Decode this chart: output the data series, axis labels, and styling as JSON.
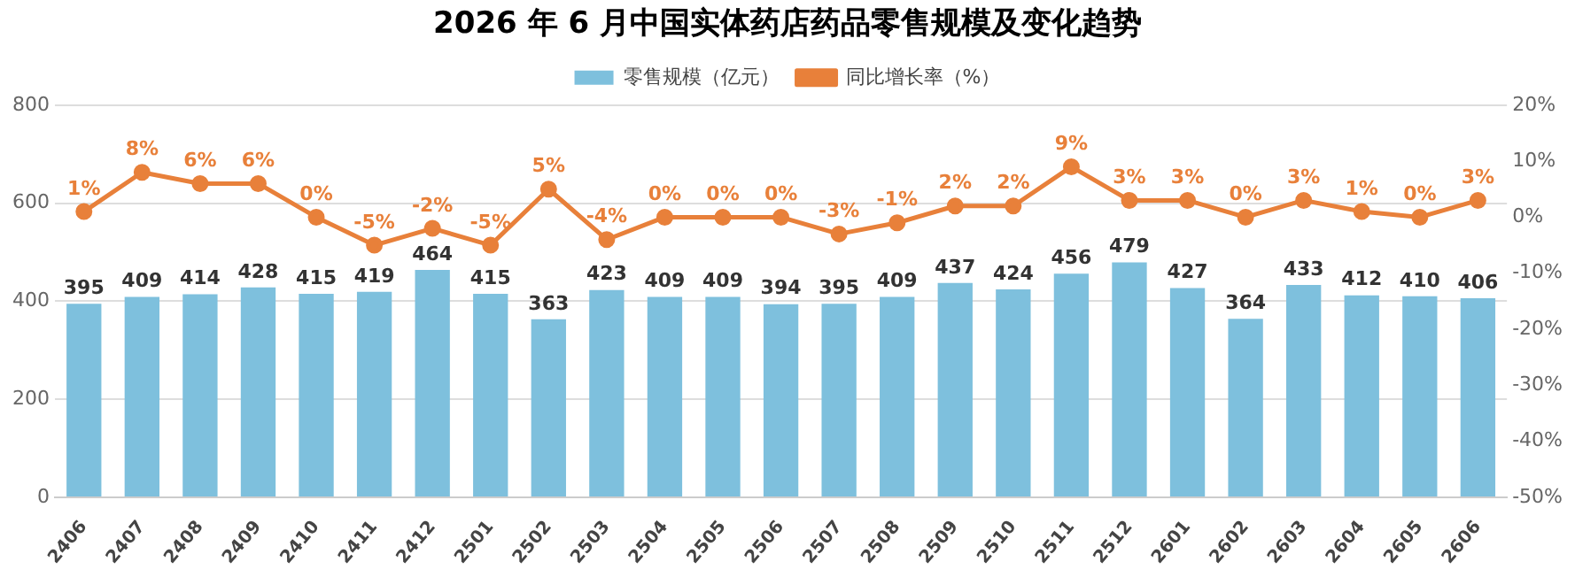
{
  "chart_data": {
    "type": "bar",
    "title": "2026 年 6 月中国实体药店药品零售规模及变化趋势",
    "categories": [
      "2406",
      "2407",
      "2408",
      "2409",
      "2410",
      "2411",
      "2412",
      "2501",
      "2502",
      "2503",
      "2504",
      "2505",
      "2506",
      "2507",
      "2508",
      "2509",
      "2510",
      "2511",
      "2512",
      "2601",
      "2602",
      "2603",
      "2604",
      "2605",
      "2606"
    ],
    "series": [
      {
        "name": "零售规模（亿元）",
        "color": "#7ec0dd",
        "values": [
          395,
          409,
          414,
          428,
          415,
          419,
          464,
          415,
          363,
          423,
          409,
          409,
          394,
          395,
          409,
          437,
          424,
          456,
          479,
          427,
          364,
          433,
          412,
          410,
          406
        ]
      },
      {
        "name": "同比增长率（%）",
        "type": "line",
        "axis": "y2",
        "color": "#e8803a",
        "values": [
          1,
          8,
          6,
          6,
          0,
          -5,
          -2,
          -5,
          5,
          -4,
          0,
          0,
          0,
          -3,
          -1,
          2,
          2,
          9,
          3,
          3,
          0,
          3,
          1,
          0,
          3
        ],
        "value_labels": [
          "1%",
          "8%",
          "6%",
          "6%",
          "0%",
          "-5%",
          "-2%",
          "-5%",
          "5%",
          "-4%",
          "0%",
          "0%",
          "0%",
          "-3%",
          "-1%",
          "2%",
          "2%",
          "9%",
          "3%",
          "3%",
          "0%",
          "3%",
          "1%",
          "0%",
          "3%"
        ]
      }
    ],
    "ylim": [
      0,
      800
    ],
    "yticks": [
      0,
      200,
      400,
      600,
      800
    ],
    "y2lim": [
      -50,
      20
    ],
    "y2ticks": [
      {
        "value": -50,
        "label": "-50%"
      },
      {
        "value": -40,
        "label": "-40%"
      },
      {
        "value": -30,
        "label": "-30%"
      },
      {
        "value": -20,
        "label": "-20%"
      },
      {
        "value": -10,
        "label": "-10%"
      },
      {
        "value": 0,
        "label": "0%"
      },
      {
        "value": 10,
        "label": "10%"
      },
      {
        "value": 20,
        "label": "20%"
      }
    ],
    "data_labels": true,
    "grid": "y",
    "legend": "top",
    "marker": "circle",
    "line_style": "solid"
  }
}
